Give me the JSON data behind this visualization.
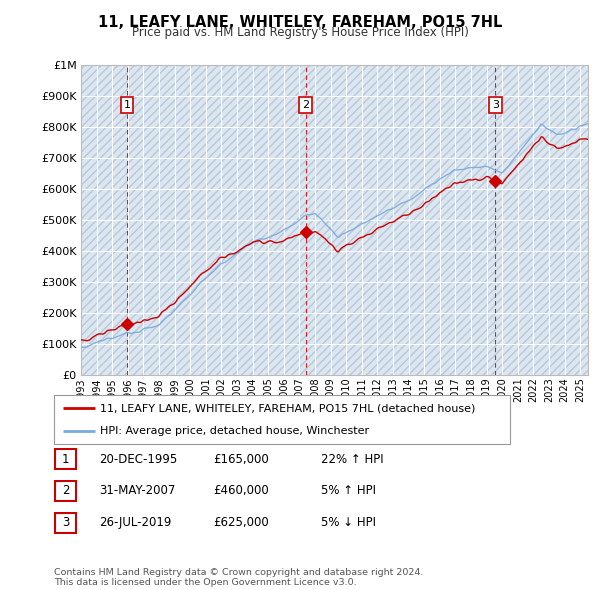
{
  "title": "11, LEAFY LANE, WHITELEY, FAREHAM, PO15 7HL",
  "subtitle": "Price paid vs. HM Land Registry's House Price Index (HPI)",
  "bg_color": "#ffffff",
  "plot_bg_color": "#dce6f1",
  "grid_color": "#ffffff",
  "sale_color": "#cc0000",
  "hpi_color": "#7aaadd",
  "vline_color": "#cc0000",
  "ylim": [
    0,
    1000000
  ],
  "yticks": [
    0,
    100000,
    200000,
    300000,
    400000,
    500000,
    600000,
    700000,
    800000,
    900000,
    1000000
  ],
  "ytick_labels": [
    "£0",
    "£100K",
    "£200K",
    "£300K",
    "£400K",
    "£500K",
    "£600K",
    "£700K",
    "£800K",
    "£900K",
    "£1M"
  ],
  "sales": [
    {
      "date": 1995.96,
      "price": 165000,
      "label": "1"
    },
    {
      "date": 2007.41,
      "price": 460000,
      "label": "2"
    },
    {
      "date": 2019.57,
      "price": 625000,
      "label": "3"
    }
  ],
  "sale_vlines": [
    1995.96,
    2007.41,
    2019.57
  ],
  "legend_sale": "11, LEAFY LANE, WHITELEY, FAREHAM, PO15 7HL (detached house)",
  "legend_hpi": "HPI: Average price, detached house, Winchester",
  "table_rows": [
    {
      "num": "1",
      "date": "20-DEC-1995",
      "price": "£165,000",
      "change": "22% ↑ HPI"
    },
    {
      "num": "2",
      "date": "31-MAY-2007",
      "price": "£460,000",
      "change": "5% ↑ HPI"
    },
    {
      "num": "3",
      "date": "26-JUL-2019",
      "price": "£625,000",
      "change": "5% ↓ HPI"
    }
  ],
  "footer": "Contains HM Land Registry data © Crown copyright and database right 2024.\nThis data is licensed under the Open Government Licence v3.0.",
  "xlim": [
    1993.0,
    2025.5
  ],
  "xticks": [
    1993,
    1994,
    1995,
    1996,
    1997,
    1998,
    1999,
    2000,
    2001,
    2002,
    2003,
    2004,
    2005,
    2006,
    2007,
    2008,
    2009,
    2010,
    2011,
    2012,
    2013,
    2014,
    2015,
    2016,
    2017,
    2018,
    2019,
    2020,
    2021,
    2022,
    2023,
    2024,
    2025
  ]
}
